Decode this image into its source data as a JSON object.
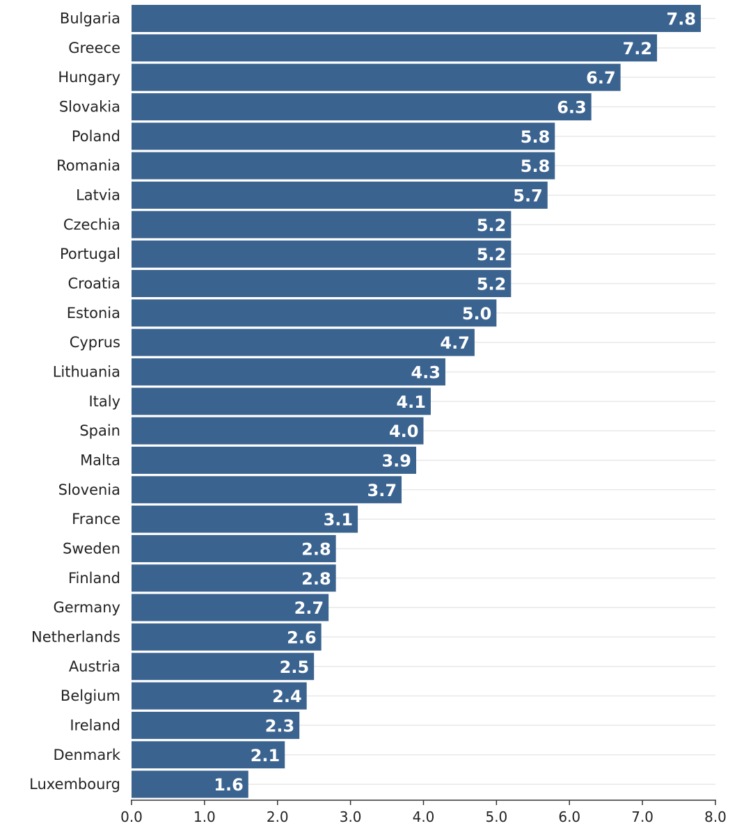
{
  "chart_data": {
    "type": "bar",
    "orientation": "horizontal",
    "title": "",
    "xlabel": "",
    "ylabel": "",
    "categories": [
      "Bulgaria",
      "Greece",
      "Hungary",
      "Slovakia",
      "Poland",
      "Romania",
      "Latvia",
      "Czechia",
      "Portugal",
      "Croatia",
      "Estonia",
      "Cyprus",
      "Lithuania",
      "Italy",
      "Spain",
      "Malta",
      "Slovenia",
      "France",
      "Sweden",
      "Finland",
      "Germany",
      "Netherlands",
      "Austria",
      "Belgium",
      "Ireland",
      "Denmark",
      "Luxembourg"
    ],
    "values": [
      7.8,
      7.2,
      6.7,
      6.3,
      5.8,
      5.8,
      5.7,
      5.2,
      5.2,
      5.2,
      5.0,
      4.7,
      4.3,
      4.1,
      4.0,
      3.9,
      3.7,
      3.1,
      2.8,
      2.8,
      2.7,
      2.6,
      2.5,
      2.4,
      2.3,
      2.1,
      1.6
    ],
    "value_labels": [
      "7.8",
      "7.2",
      "6.7",
      "6.3",
      "5.8",
      "5.8",
      "5.7",
      "5.2",
      "5.2",
      "5.2",
      "5.0",
      "4.7",
      "4.3",
      "4.1",
      "4.0",
      "3.9",
      "3.7",
      "3.1",
      "2.8",
      "2.8",
      "2.7",
      "2.6",
      "2.5",
      "2.4",
      "2.3",
      "2.1",
      "1.6"
    ],
    "xlim": [
      0,
      8
    ],
    "xticks": [
      0,
      1,
      2,
      3,
      4,
      5,
      6,
      7,
      8
    ],
    "xtick_labels": [
      "0.0",
      "1.0",
      "2.0",
      "3.0",
      "4.0",
      "5.0",
      "6.0",
      "7.0",
      "8.0"
    ],
    "grid": true,
    "legend": "none",
    "colors": {
      "bar": "#3b638f",
      "grid": "#e8e8e8",
      "axis": "#333333",
      "value_text": "#ffffff"
    }
  }
}
